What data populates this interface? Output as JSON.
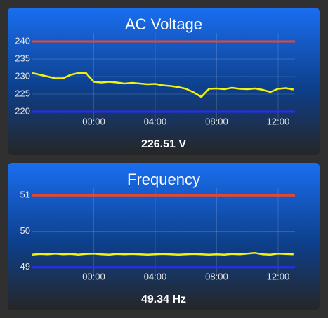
{
  "chart_data": [
    {
      "type": "line",
      "title": "AC Voltage",
      "reading": "226.51 V",
      "x": [
        -4,
        -3.5,
        -3,
        -2.5,
        -2,
        -1.5,
        -1,
        -0.5,
        0,
        0.5,
        1,
        1.5,
        2,
        2.5,
        3,
        3.5,
        4,
        4.5,
        5,
        5.5,
        6,
        6.5,
        7,
        7.5,
        8,
        8.5,
        9,
        9.5,
        10,
        10.5,
        11,
        11.5,
        12,
        12.5,
        13
      ],
      "values": [
        231,
        230.5,
        230,
        229.5,
        229.5,
        230.5,
        231,
        231,
        228.5,
        228.3,
        228.5,
        228.3,
        228,
        228.2,
        228,
        227.8,
        227.9,
        227.5,
        227.3,
        227,
        226.5,
        225.5,
        224.2,
        226.5,
        226.6,
        226.4,
        226.8,
        226.5,
        226.4,
        226.6,
        226.2,
        225.6,
        226.5,
        226.7,
        226.3
      ],
      "color": "#f2f20c",
      "thresholds": [
        {
          "value": 240,
          "color": "#e8472e"
        },
        {
          "value": 220,
          "color": "#2a2aff"
        }
      ],
      "xlim": [
        -4,
        13.1
      ],
      "xticks": [
        {
          "value": 0,
          "label": "00:00"
        },
        {
          "value": 4,
          "label": "04:00"
        },
        {
          "value": 8,
          "label": "08:00"
        },
        {
          "value": 12,
          "label": "12:00"
        }
      ],
      "ylim": [
        217.8,
        242.4
      ],
      "yticks": [
        220,
        225,
        230,
        235,
        240
      ],
      "grid": true
    },
    {
      "type": "line",
      "title": "Frequency",
      "reading": "49.34 Hz",
      "x": [
        -4,
        -3.5,
        -3,
        -2.5,
        -2,
        -1.5,
        -1,
        -0.5,
        0,
        0.5,
        1,
        1.5,
        2,
        2.5,
        3,
        3.5,
        4,
        4.5,
        5,
        5.5,
        6,
        6.5,
        7,
        7.5,
        8,
        8.5,
        9,
        9.5,
        10,
        10.5,
        11,
        11.5,
        12,
        12.5,
        13
      ],
      "values": [
        49.35,
        49.37,
        49.36,
        49.38,
        49.36,
        49.37,
        49.35,
        49.37,
        49.38,
        49.36,
        49.35,
        49.37,
        49.36,
        49.37,
        49.36,
        49.35,
        49.36,
        49.37,
        49.36,
        49.35,
        49.36,
        49.37,
        49.36,
        49.35,
        49.36,
        49.35,
        49.37,
        49.36,
        49.38,
        49.4,
        49.36,
        49.35,
        49.38,
        49.37,
        49.36
      ],
      "color": "#f2f20c",
      "thresholds": [
        {
          "value": 51,
          "color": "#e8472e"
        },
        {
          "value": 49,
          "color": "#2a2aff"
        }
      ],
      "xlim": [
        -4,
        13.1
      ],
      "xticks": [
        {
          "value": 0,
          "label": "00:00"
        },
        {
          "value": 4,
          "label": "04:00"
        },
        {
          "value": 8,
          "label": "08:00"
        },
        {
          "value": 12,
          "label": "12:00"
        }
      ],
      "ylim": [
        48.8,
        51.2
      ],
      "yticks": [
        49,
        50,
        51
      ],
      "grid": true
    }
  ]
}
